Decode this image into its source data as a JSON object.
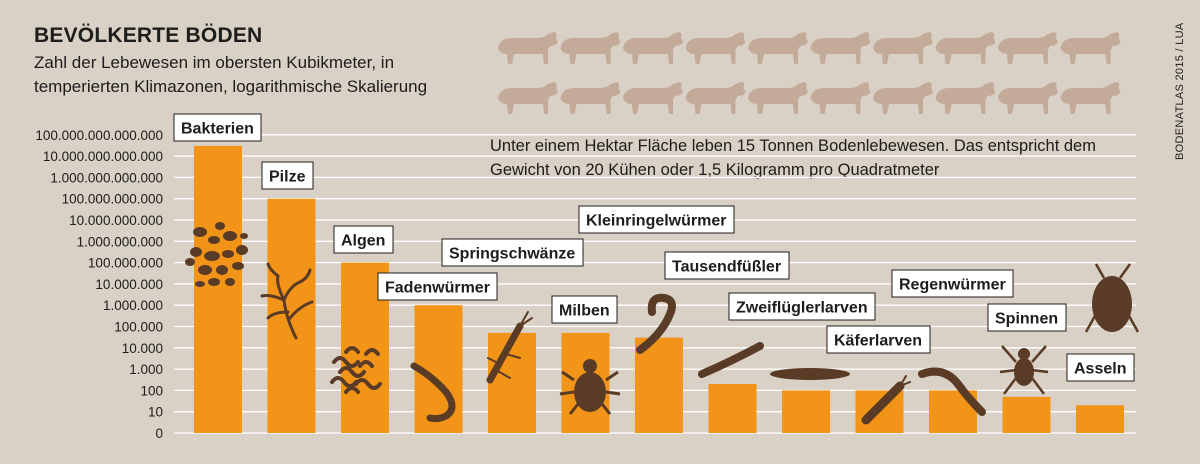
{
  "title": "BEVÖLKERTE BÖDEN",
  "subtitle_line1": "Zahl der Lebewesen im obersten Kubikmeter, in",
  "subtitle_line2": "temperierten Klimazonen, logarithmische Skalierung",
  "info_line1": "Unter einem Hektar Fläche leben 15 Tonnen Bodenlebewesen. Das entspricht dem",
  "info_line2": "Gewicht von 20 Kühen oder 1,5 Kilogramm pro Quadratmeter",
  "source": "BODENATLAS 2015 / LUA",
  "cows": {
    "count": 20,
    "color": "#c4aa99",
    "icon": "cow-icon"
  },
  "colors": {
    "background": "#d9d0c6",
    "bar": "#f29418",
    "grid": "#ffffff",
    "silhouette": "#5a3b26"
  },
  "chart_data": {
    "type": "bar",
    "yscale": "log",
    "yticks": [
      "0",
      "10",
      "100",
      "1.000",
      "10.000",
      "100.000",
      "1.000.000",
      "10.000.000",
      "100.000.000",
      "1.000.000.000",
      "10.000.000.000",
      "100.000.000.000",
      "1.000.000.000.000",
      "10.000.000.000.000",
      "100.000.000.000.000"
    ],
    "categories": [
      "Bakterien",
      "Pilze",
      "Algen",
      "Fadenwürmer",
      "Springschwänze",
      "Milben",
      "Kleinringelwürmer",
      "Tausendfüßler",
      "Zweiflüglerlarven",
      "Käferlarven",
      "Regenwürmer",
      "Spinnen",
      "Asseln"
    ],
    "values": [
      30000000000000,
      100000000000,
      100000000,
      1000000,
      50000,
      50000,
      30000,
      200,
      100,
      100,
      100,
      50,
      20
    ],
    "grid": true
  }
}
